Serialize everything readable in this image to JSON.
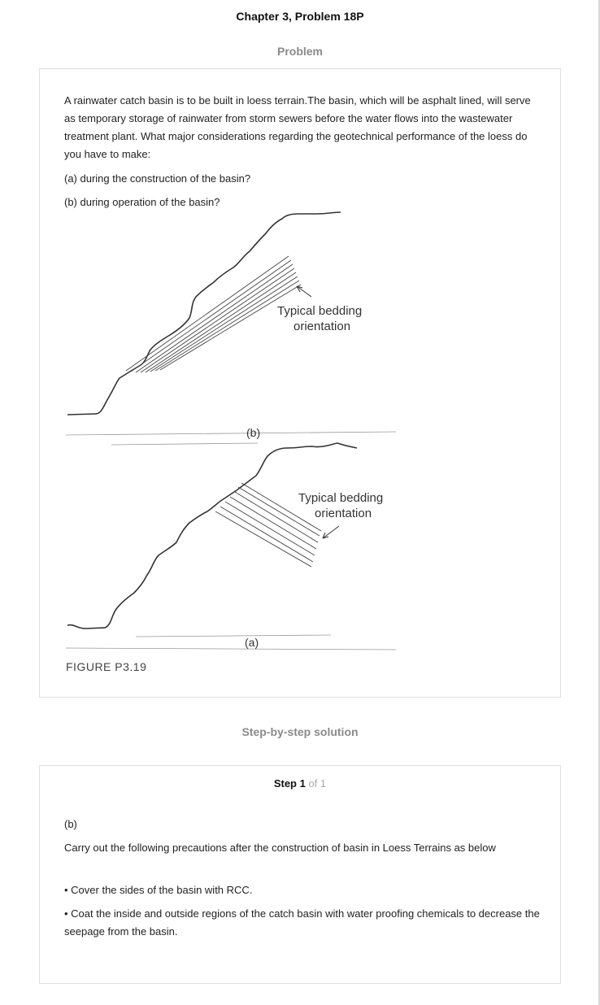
{
  "header": {
    "title": "Chapter 3, Problem 18P"
  },
  "problem": {
    "heading": "Problem",
    "statement": "A rainwater catch basin is to be built in loess terrain.The basin, which will be asphalt lined, will serve as temporary storage of rainwater from storm sewers before the water flows into the wastewater treatment plant. What major considerations regarding the geotechnical performance of the loess do you have to make:",
    "part_a": "(a) during the construction of the basin?",
    "part_b": "(b) during operation of the basin?",
    "figure": {
      "label_b": "Typical bedding orientation",
      "label_b_line1": "Typical bedding",
      "label_b_line2": "orientation",
      "label_a_line1": "Typical bedding",
      "label_a_line2": "orientation",
      "sub_b": "(b)",
      "sub_a": "(a)",
      "caption": "FIGURE P3.19"
    }
  },
  "solution": {
    "heading": "Step-by-step solution",
    "step_label": "Step 1",
    "step_of": "of 1",
    "part": "(b)",
    "intro": "Carry out the following precautions after the construction of basin in Loess Terrains as below",
    "bullets": [
      "• Cover the sides of the basin with RCC.",
      "• Coat the inside and outside regions of the catch basin with water proofing chemicals to decrease the seepage from the basin."
    ]
  }
}
